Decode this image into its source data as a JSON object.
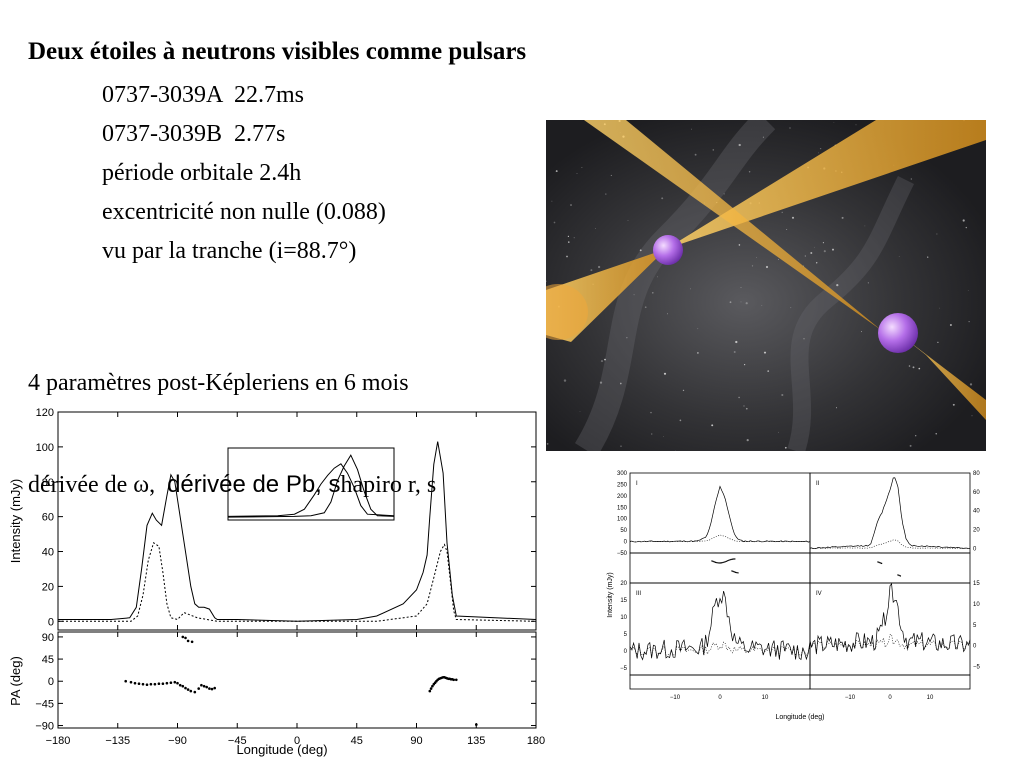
{
  "slide": {
    "title": "Deux étoiles à neutrons visibles comme pulsars",
    "facts": [
      "0737-3039A  22.7ms",
      "0737-3039B  2.77s",
      "période orbitale 2.4h",
      "excentricité non nulle (0.088)",
      "vu par la tranche (i=88.7°)"
    ],
    "params_line1": "4 paramètres post-Képleriens en 6 mois",
    "params_line2_a": "dérivée de ω,  ",
    "params_line2_b": "dérivée de Pb, s",
    "params_line2_c": "hapiro r, s",
    "artwork": {
      "background": "#232325",
      "beam_color": "#f3b132",
      "star_color": "#b070e0"
    }
  },
  "chart_data": [
    {
      "type": "line",
      "panel": "intensity",
      "xlabel": "Longitude (deg)",
      "ylabel": "Intensity (mJy)",
      "xlim": [
        -180,
        180
      ],
      "ylim": [
        -5,
        120
      ],
      "x_ticks": [
        "−180",
        "−135",
        "−90",
        "−45",
        "0",
        "45",
        "90",
        "135",
        "180"
      ],
      "y_ticks": [
        "0",
        "20",
        "40",
        "60",
        "80",
        "100",
        "120"
      ],
      "series": [
        {
          "style": "solid",
          "x": [
            -180,
            -140,
            -126,
            -121,
            -117,
            -113,
            -109,
            -106,
            -102,
            -98,
            -95,
            -92,
            -89,
            -86,
            -83,
            -80,
            -77,
            -74,
            -70,
            -66,
            -62,
            -60,
            -55,
            -45,
            0,
            45,
            60,
            80,
            90,
            95,
            98,
            100,
            103,
            106,
            110,
            113,
            117,
            120,
            180
          ],
          "y": [
            1,
            1,
            2,
            8,
            30,
            55,
            62,
            58,
            55,
            72,
            84,
            80,
            65,
            50,
            35,
            20,
            10,
            8,
            8,
            7,
            2,
            1,
            1,
            1,
            0,
            1,
            3,
            10,
            18,
            28,
            38,
            60,
            90,
            103,
            85,
            45,
            15,
            3,
            1
          ]
        },
        {
          "style": "dashed",
          "x": [
            -180,
            -125,
            -120,
            -116,
            -112,
            -108,
            -104,
            -101,
            -98,
            -95,
            -90,
            -85,
            -75,
            -60,
            0,
            60,
            90,
            98,
            103,
            108,
            111,
            113,
            116,
            118,
            120,
            180
          ],
          "y": [
            0,
            0,
            3,
            15,
            35,
            45,
            43,
            28,
            10,
            2,
            1,
            5,
            2,
            0,
            0,
            0,
            3,
            10,
            25,
            40,
            44,
            40,
            20,
            6,
            1,
            0
          ]
        }
      ],
      "inset": {
        "xlim": [
          -20,
          30
        ],
        "ylim": [
          0,
          100
        ],
        "series": [
          {
            "style": "solid",
            "x": [
              -20,
              -5,
              0,
              3,
              6,
              8,
              10,
              12,
              14,
              16,
              18,
              20,
              22,
              30
            ],
            "y": [
              5,
              6,
              8,
              15,
              35,
              50,
              62,
              72,
              78,
              65,
              45,
              20,
              8,
              6
            ]
          },
          {
            "style": "solid",
            "x": [
              -20,
              0,
              5,
              9,
              11,
              13,
              15,
              17,
              19,
              21,
              23,
              25,
              30
            ],
            "y": [
              4,
              5,
              6,
              10,
              25,
              55,
              75,
              90,
              70,
              40,
              15,
              6,
              5
            ]
          }
        ]
      }
    },
    {
      "type": "scatter",
      "panel": "position-angle",
      "ylabel": "PA (deg)",
      "xlim": [
        -180,
        180
      ],
      "ylim": [
        -95,
        100
      ],
      "y_ticks": [
        "90",
        "45",
        "0",
        "−45",
        "−90"
      ],
      "x": [
        -129,
        -125,
        -122,
        -119,
        -116,
        -113,
        -110,
        -107,
        -104,
        -101,
        -98,
        -95,
        -92,
        -90,
        -88,
        -86,
        -84,
        -82,
        -80,
        -77,
        -74,
        -72,
        -70,
        -68,
        -66,
        -64,
        -62,
        -86,
        -84,
        -82,
        -79,
        100,
        101,
        102,
        103,
        104,
        105,
        106,
        107,
        108,
        109,
        110,
        111,
        112,
        113,
        114,
        115,
        116,
        117,
        118,
        120,
        135
      ],
      "y": [
        0,
        -2,
        -4,
        -5,
        -6,
        -7,
        -6,
        -6,
        -5,
        -5,
        -4,
        -3,
        -2,
        -4,
        -8,
        -10,
        -14,
        -17,
        -20,
        -22,
        -15,
        -8,
        -10,
        -12,
        -15,
        -16,
        -14,
        90,
        88,
        82,
        80,
        -20,
        -15,
        -10,
        -6,
        -3,
        0,
        3,
        5,
        6,
        7,
        8,
        8,
        7,
        6,
        5,
        5,
        4,
        4,
        3,
        3,
        -88
      ]
    },
    {
      "type": "line",
      "panel": "single-pulses",
      "xlabel": "Longitude (deg)",
      "ylabel": "Intensity (mJy)",
      "xlim": [
        -20,
        20
      ],
      "x_ticks": [
        "−10",
        "0",
        "10"
      ],
      "subpanels": [
        "I",
        "II",
        "III",
        "IV"
      ],
      "left_ticks_top": [
        "300",
        "250",
        "200",
        "150",
        "100",
        "50",
        "0",
        "−50"
      ],
      "right_ticks_top": [
        "80",
        "60",
        "40",
        "20",
        "0"
      ],
      "left_ticks_bottom": [
        "20",
        "15",
        "10",
        "5",
        "0",
        "−5"
      ],
      "right_ticks_bottom": [
        "15",
        "10",
        "5",
        "0",
        "−5"
      ],
      "series": [
        {
          "name": "I",
          "x": [
            -20,
            -5,
            -3,
            -2,
            -1,
            0,
            1,
            2,
            3,
            4,
            5,
            20
          ],
          "y": [
            0,
            2,
            20,
            80,
            170,
            240,
            200,
            120,
            40,
            10,
            2,
            0
          ]
        },
        {
          "name": "II",
          "x": [
            -20,
            -5,
            -4,
            -3,
            -2,
            -1,
            0,
            1,
            2,
            3,
            4,
            5,
            20
          ],
          "y": [
            0,
            3,
            15,
            30,
            38,
            50,
            62,
            78,
            65,
            30,
            10,
            3,
            0
          ]
        },
        {
          "name": "III",
          "x": [
            -20,
            -4,
            -3,
            -2,
            -1,
            0,
            1,
            2,
            3,
            4,
            5,
            20
          ],
          "y": [
            0,
            1,
            3,
            8,
            14,
            17,
            16,
            10,
            4,
            2,
            1,
            0
          ]
        },
        {
          "name": "IV",
          "x": [
            -20,
            -4,
            -3,
            -2,
            -1,
            0,
            1,
            2,
            3,
            4,
            5,
            20
          ],
          "y": [
            0,
            1,
            2,
            4,
            8,
            12,
            13,
            9,
            4,
            2,
            1,
            0
          ]
        }
      ]
    }
  ]
}
